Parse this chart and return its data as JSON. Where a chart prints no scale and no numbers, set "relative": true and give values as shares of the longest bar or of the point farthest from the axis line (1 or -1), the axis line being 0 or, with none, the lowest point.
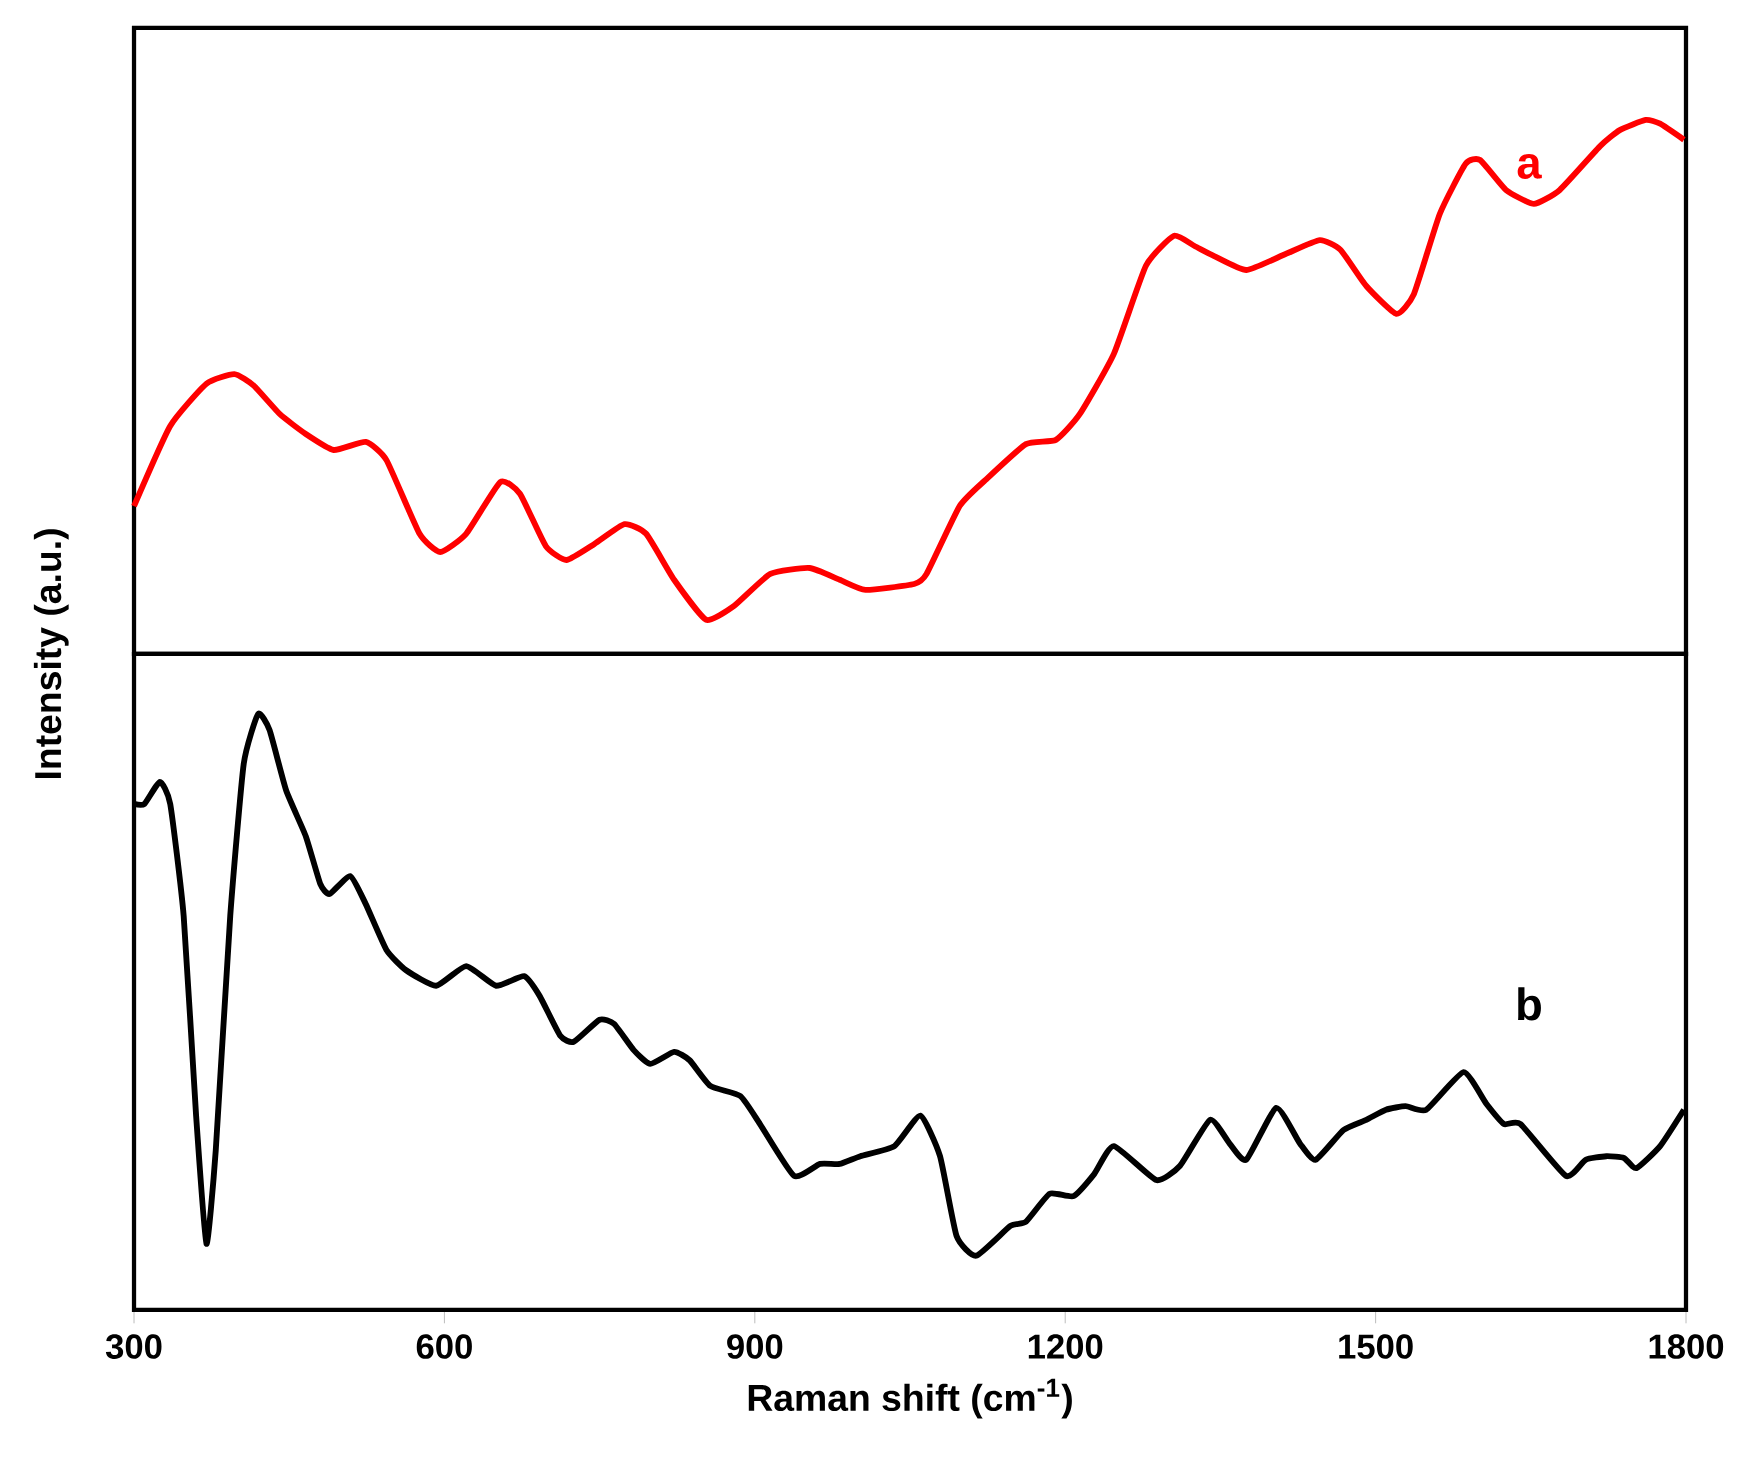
{
  "chart_data": [
    {
      "type": "line",
      "relative": true,
      "xlim": [
        300,
        1800
      ],
      "xticks": [
        300,
        600,
        900,
        1200,
        1500,
        1800
      ],
      "tick_labels": false,
      "ylabel": "Intensity (a.u.)",
      "series": [
        {
          "name": "a",
          "color": "#ff0000",
          "x": [
            300,
            335,
            370,
            397,
            416,
            441,
            466,
            493,
            524,
            544,
            576,
            596,
            621,
            654,
            673,
            698,
            718,
            745,
            774,
            795,
            822,
            853,
            880,
            915,
            953,
            982,
            1007,
            1054,
            1066,
            1098,
            1123,
            1162,
            1191,
            1214,
            1247,
            1278,
            1305,
            1325,
            1344,
            1375,
            1413,
            1446,
            1466,
            1491,
            1520,
            1537,
            1562,
            1587,
            1601,
            1626,
            1653,
            1678,
            1717,
            1736,
            1761,
            1775,
            1798
          ],
          "values": [
            0.277,
            0.427,
            0.506,
            0.524,
            0.502,
            0.449,
            0.412,
            0.382,
            0.397,
            0.363,
            0.225,
            0.191,
            0.225,
            0.322,
            0.3,
            0.202,
            0.176,
            0.206,
            0.243,
            0.225,
            0.139,
            0.064,
            0.09,
            0.15,
            0.161,
            0.139,
            0.12,
            0.131,
            0.15,
            0.277,
            0.326,
            0.393,
            0.401,
            0.449,
            0.562,
            0.727,
            0.783,
            0.764,
            0.745,
            0.719,
            0.749,
            0.775,
            0.757,
            0.689,
            0.637,
            0.674,
            0.824,
            0.918,
            0.925,
            0.869,
            0.843,
            0.869,
            0.951,
            0.981,
            1,
            0.993,
            0.963
          ]
        }
      ]
    },
    {
      "type": "line",
      "relative": true,
      "xlim": [
        300,
        1800
      ],
      "xticks": [
        300,
        600,
        900,
        1200,
        1500,
        1800
      ],
      "tick_labels": "x",
      "xlabel": "Raman shift (cm$^{-1}$)",
      "series": [
        {
          "name": "b",
          "color": "#000000",
          "x": [
            300,
            310,
            325,
            335,
            348,
            360,
            370,
            379,
            393,
            406,
            420,
            431,
            447,
            466,
            480,
            489,
            509,
            524,
            544,
            563,
            592,
            621,
            650,
            677,
            692,
            712,
            725,
            750,
            764,
            783,
            799,
            822,
            837,
            857,
            886,
            905,
            938,
            963,
            982,
            1002,
            1035,
            1060,
            1079,
            1095,
            1114,
            1147,
            1162,
            1185,
            1208,
            1228,
            1247,
            1288,
            1311,
            1340,
            1359,
            1375,
            1404,
            1427,
            1442,
            1469,
            1491,
            1510,
            1529,
            1549,
            1585,
            1607,
            1624,
            1640,
            1684,
            1703,
            1723,
            1740,
            1752,
            1775,
            1798
          ],
          "values": [
            0.849,
            0.849,
            0.886,
            0.849,
            0.661,
            0.326,
            0.111,
            0.268,
            0.661,
            0.916,
            1,
            0.973,
            0.872,
            0.795,
            0.715,
            0.698,
            0.728,
            0.681,
            0.604,
            0.57,
            0.544,
            0.577,
            0.544,
            0.56,
            0.527,
            0.46,
            0.45,
            0.487,
            0.48,
            0.436,
            0.413,
            0.433,
            0.419,
            0.376,
            0.359,
            0.312,
            0.225,
            0.245,
            0.245,
            0.258,
            0.275,
            0.326,
            0.258,
            0.124,
            0.091,
            0.141,
            0.148,
            0.195,
            0.191,
            0.228,
            0.275,
            0.218,
            0.242,
            0.319,
            0.279,
            0.252,
            0.339,
            0.279,
            0.252,
            0.302,
            0.319,
            0.336,
            0.342,
            0.336,
            0.399,
            0.346,
            0.312,
            0.312,
            0.225,
            0.252,
            0.258,
            0.255,
            0.238,
            0.275,
            0.336
          ]
        }
      ]
    }
  ]
}
